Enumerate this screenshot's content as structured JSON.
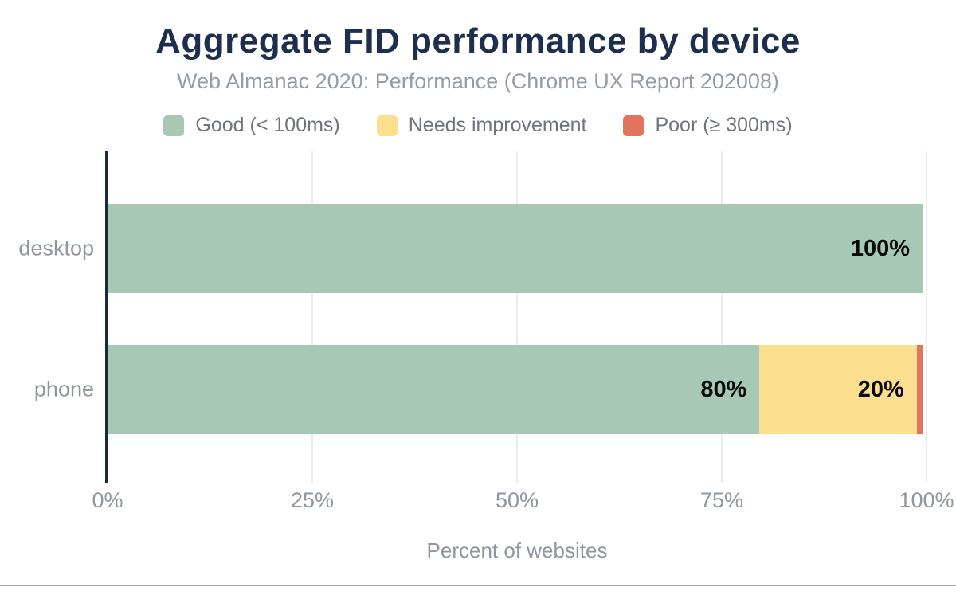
{
  "chart_data": {
    "type": "bar",
    "orientation": "horizontal",
    "stacked": true,
    "title": "Aggregate FID performance by device",
    "subtitle": "Web Almanac 2020: Performance (Chrome UX Report 202008)",
    "categories": [
      "desktop",
      "phone"
    ],
    "series": [
      {
        "name": "Good (< 100ms)",
        "color": "#a6c8b5",
        "values": [
          100,
          80
        ],
        "labels": [
          "100%",
          "80%"
        ]
      },
      {
        "name": "Needs improvement",
        "color": "#fbdf8e",
        "values": [
          0,
          19.3
        ],
        "labels": [
          "",
          "20%"
        ]
      },
      {
        "name": "Poor (≥ 300ms)",
        "color": "#e2735e",
        "values": [
          0,
          0.7
        ],
        "labels": [
          "",
          ""
        ]
      }
    ],
    "xlabel": "Percent of websites",
    "x_ticks": [
      "0%",
      "25%",
      "50%",
      "75%",
      "100%"
    ],
    "xlim": [
      0,
      100
    ],
    "legend_position": "top",
    "grid": "vertical"
  },
  "colors": {
    "title": "#1e2e4f",
    "axis_line": "#16293f",
    "muted_text": "#8f96a1",
    "grid_line": "#ececec",
    "data_label": "#0a0a0a"
  }
}
